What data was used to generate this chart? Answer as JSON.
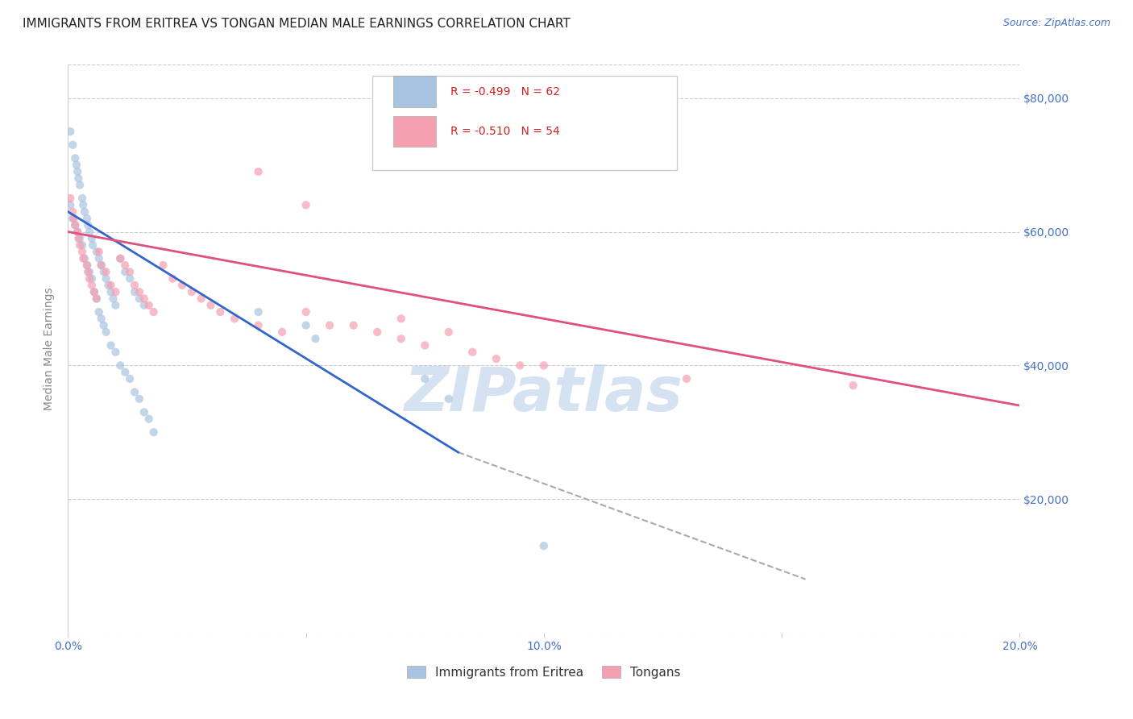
{
  "title": "IMMIGRANTS FROM ERITREA VS TONGAN MEDIAN MALE EARNINGS CORRELATION CHART",
  "source": "Source: ZipAtlas.com",
  "ylabel": "Median Male Earnings",
  "watermark": "ZIPatlas",
  "xmin": 0.0,
  "xmax": 0.2,
  "ymin": 0,
  "ymax": 85000,
  "yticks": [
    0,
    20000,
    40000,
    60000,
    80000
  ],
  "ytick_labels": [
    "",
    "$20,000",
    "$40,000",
    "$60,000",
    "$80,000"
  ],
  "xticks": [
    0.0,
    0.05,
    0.1,
    0.15,
    0.2
  ],
  "xtick_labels": [
    "0.0%",
    "",
    "10.0%",
    "",
    "20.0%"
  ],
  "legend_entries": [
    {
      "label": "Immigrants from Eritrea",
      "color": "#a8c4e0",
      "R": "-0.499",
      "N": "62"
    },
    {
      "label": "Tongans",
      "color": "#f4a0b0",
      "R": "-0.510",
      "N": "54"
    }
  ],
  "blue_scatter_x": [
    0.0005,
    0.001,
    0.0015,
    0.0018,
    0.002,
    0.0022,
    0.0025,
    0.003,
    0.0032,
    0.0035,
    0.004,
    0.0042,
    0.0045,
    0.005,
    0.0052,
    0.006,
    0.0065,
    0.007,
    0.0075,
    0.008,
    0.0085,
    0.009,
    0.0095,
    0.01,
    0.011,
    0.012,
    0.013,
    0.014,
    0.015,
    0.016,
    0.0005,
    0.001,
    0.0015,
    0.002,
    0.0025,
    0.003,
    0.0035,
    0.004,
    0.0045,
    0.005,
    0.0055,
    0.006,
    0.0065,
    0.007,
    0.0075,
    0.008,
    0.009,
    0.01,
    0.011,
    0.012,
    0.013,
    0.014,
    0.015,
    0.016,
    0.017,
    0.018,
    0.04,
    0.05,
    0.052,
    0.075,
    0.08,
    0.1
  ],
  "blue_scatter_y": [
    75000,
    73000,
    71000,
    70000,
    69000,
    68000,
    67000,
    65000,
    64000,
    63000,
    62000,
    61000,
    60000,
    59000,
    58000,
    57000,
    56000,
    55000,
    54000,
    53000,
    52000,
    51000,
    50000,
    49000,
    56000,
    54000,
    53000,
    51000,
    50000,
    49000,
    64000,
    62000,
    61000,
    60000,
    59000,
    58000,
    56000,
    55000,
    54000,
    53000,
    51000,
    50000,
    48000,
    47000,
    46000,
    45000,
    43000,
    42000,
    40000,
    39000,
    38000,
    36000,
    35000,
    33000,
    32000,
    30000,
    48000,
    46000,
    44000,
    38000,
    35000,
    13000
  ],
  "pink_scatter_x": [
    0.0005,
    0.001,
    0.0012,
    0.0015,
    0.002,
    0.0022,
    0.0025,
    0.003,
    0.0032,
    0.004,
    0.0042,
    0.0045,
    0.005,
    0.0055,
    0.006,
    0.0065,
    0.007,
    0.008,
    0.009,
    0.01,
    0.011,
    0.012,
    0.013,
    0.014,
    0.015,
    0.016,
    0.017,
    0.018,
    0.02,
    0.022,
    0.024,
    0.026,
    0.028,
    0.03,
    0.032,
    0.035,
    0.04,
    0.045,
    0.05,
    0.055,
    0.06,
    0.065,
    0.07,
    0.075,
    0.08,
    0.085,
    0.09,
    0.095,
    0.1,
    0.13,
    0.04,
    0.05,
    0.07,
    0.165
  ],
  "pink_scatter_y": [
    65000,
    63000,
    62000,
    61000,
    60000,
    59000,
    58000,
    57000,
    56000,
    55000,
    54000,
    53000,
    52000,
    51000,
    50000,
    57000,
    55000,
    54000,
    52000,
    51000,
    56000,
    55000,
    54000,
    52000,
    51000,
    50000,
    49000,
    48000,
    55000,
    53000,
    52000,
    51000,
    50000,
    49000,
    48000,
    47000,
    46000,
    45000,
    48000,
    46000,
    46000,
    45000,
    44000,
    43000,
    45000,
    42000,
    41000,
    40000,
    40000,
    38000,
    69000,
    64000,
    47000,
    37000
  ],
  "blue_line_x": [
    0.0,
    0.082
  ],
  "blue_line_y": [
    63000,
    27000
  ],
  "pink_line_x": [
    0.0,
    0.2
  ],
  "pink_line_y": [
    60000,
    34000
  ],
  "dashed_line_x": [
    0.082,
    0.155
  ],
  "dashed_line_y": [
    27000,
    8000
  ],
  "background_color": "#ffffff",
  "grid_color": "#cccccc",
  "title_color": "#222222",
  "axis_color": "#4472c4",
  "ylabel_color": "#888888",
  "title_fontsize": 11,
  "source_fontsize": 9,
  "tick_fontsize": 10,
  "watermark_color": "#b8cfe8",
  "watermark_fontsize": 55,
  "scatter_alpha": 0.7,
  "scatter_size": 55
}
